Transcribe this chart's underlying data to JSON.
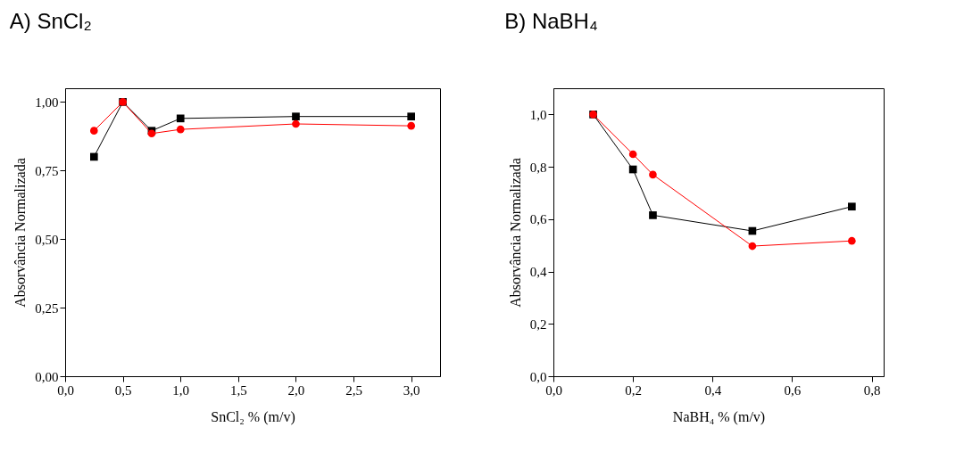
{
  "chart_data": [
    {
      "type": "line",
      "title": "A)  SnCl₂",
      "xlabel": "SnCl₂ % (m/v)",
      "ylabel": "Absorvância Normalizada",
      "x": [
        0.25,
        0.5,
        0.75,
        1.0,
        2.0,
        3.0
      ],
      "series": [
        {
          "color": "#000000",
          "marker": "square",
          "values": [
            0.8,
            1.0,
            0.895,
            0.94,
            0.947,
            0.947
          ]
        },
        {
          "color": "#ff0000",
          "marker": "circle",
          "values": [
            0.895,
            1.0,
            0.885,
            0.9,
            0.92,
            0.913
          ]
        }
      ],
      "xlim": [
        0,
        3.25
      ],
      "ylim": [
        0,
        1.05
      ],
      "xticks": [
        {
          "value": 0,
          "label": "0,0"
        },
        {
          "value": 0.5,
          "label": "0,5"
        },
        {
          "value": 1,
          "label": "1,0"
        },
        {
          "value": 1.5,
          "label": "1,5"
        },
        {
          "value": 2,
          "label": "2,0"
        },
        {
          "value": 2.5,
          "label": "2,5"
        },
        {
          "value": 3,
          "label": "3,0"
        }
      ],
      "yticks": [
        {
          "value": 0,
          "label": "0,00"
        },
        {
          "value": 0.25,
          "label": "0,25"
        },
        {
          "value": 0.5,
          "label": "0,50"
        },
        {
          "value": 0.75,
          "label": "0,75"
        },
        {
          "value": 1,
          "label": "1,00"
        }
      ],
      "grid": false
    },
    {
      "type": "line",
      "title": "B)  NaBH₄",
      "xlabel": "NaBH₄ % (m/v)",
      "ylabel": "Absorvância Normalizada",
      "x": [
        0.1,
        0.2,
        0.25,
        0.5,
        0.75
      ],
      "series": [
        {
          "color": "#000000",
          "marker": "square",
          "values": [
            1.0,
            0.79,
            0.615,
            0.555,
            0.648
          ]
        },
        {
          "color": "#ff0000",
          "marker": "circle",
          "values": [
            1.0,
            0.848,
            0.77,
            0.497,
            0.517
          ]
        }
      ],
      "xlim": [
        0,
        0.83
      ],
      "ylim": [
        0,
        1.1
      ],
      "xticks": [
        {
          "value": 0,
          "label": "0,0"
        },
        {
          "value": 0.2,
          "label": "0,2"
        },
        {
          "value": 0.4,
          "label": "0,4"
        },
        {
          "value": 0.6,
          "label": "0,6"
        },
        {
          "value": 0.8,
          "label": "0,8"
        }
      ],
      "yticks": [
        {
          "value": 0,
          "label": "0,0"
        },
        {
          "value": 0.2,
          "label": "0,2"
        },
        {
          "value": 0.4,
          "label": "0,4"
        },
        {
          "value": 0.6,
          "label": "0,6"
        },
        {
          "value": 0.8,
          "label": "0,8"
        },
        {
          "value": 1,
          "label": "1,0"
        }
      ],
      "grid": false
    }
  ]
}
